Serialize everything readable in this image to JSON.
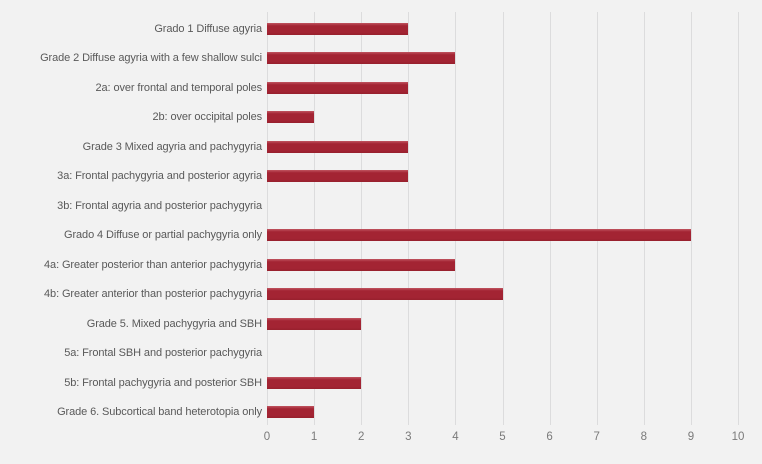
{
  "chart_data": {
    "type": "bar",
    "orientation": "horizontal",
    "title": "",
    "xlabel": "",
    "ylabel": "",
    "categories": [
      "Grado 1 Diffuse agyria",
      "Grade 2 Diffuse agyria with a few shallow sulci",
      "2a: over frontal and temporal poles",
      "2b: over occipital poles",
      "Grade 3 Mixed agyria and pachygyria",
      "3a: Frontal pachygyria and posterior agyria",
      "3b: Frontal agyria and posterior pachygyria",
      "Grado 4 Diffuse or partial pachygyria only",
      "4a: Greater posterior than anterior pachygyria",
      "4b: Greater anterior than posterior pachygyria",
      "Grade 5. Mixed pachygyria and SBH",
      "5a: Frontal SBH and posterior pachygyria",
      "5b: Frontal pachygyria and posterior SBH",
      "Grade 6. Subcortical band heterotopia only"
    ],
    "values": [
      3,
      4,
      3,
      1,
      3,
      3,
      0,
      9,
      4,
      5,
      2,
      0,
      2,
      1
    ],
    "xlim": [
      0,
      10
    ],
    "xticks": [
      0,
      1,
      2,
      3,
      4,
      5,
      6,
      7,
      8,
      9,
      10
    ],
    "grid": "vertical-only",
    "legend": "none",
    "colors": {
      "bar": "#a32433",
      "background": "#f2f2f2",
      "gridline": "#dcdcdd",
      "category_label": "#595959",
      "tick_label": "#7a7a7a"
    }
  }
}
